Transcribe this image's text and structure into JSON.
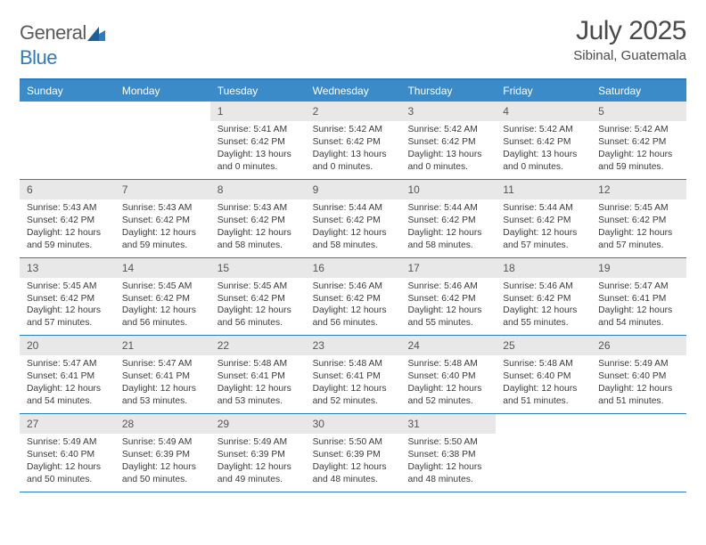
{
  "brand": {
    "part1": "General",
    "part2": "Blue"
  },
  "title": "July 2025",
  "location": "Sibinal, Guatemala",
  "colors": {
    "header_bar": "#3b8bc9",
    "border": "#2f7bbf",
    "daynum_bg": "#e8e8e8",
    "text": "#333333",
    "muted": "#555555",
    "page_bg": "#ffffff"
  },
  "typography": {
    "title_fontsize": 30,
    "location_fontsize": 15,
    "dow_fontsize": 12,
    "cell_fontsize": 10.3,
    "daynum_fontsize": 12
  },
  "layout": {
    "columns": 7,
    "rows": 5,
    "cell_min_height": 84
  },
  "daysOfWeek": [
    "Sunday",
    "Monday",
    "Tuesday",
    "Wednesday",
    "Thursday",
    "Friday",
    "Saturday"
  ],
  "weeks": [
    [
      null,
      null,
      {
        "n": "1",
        "sr": "5:41 AM",
        "ss": "6:42 PM",
        "dl": "13 hours and 0 minutes."
      },
      {
        "n": "2",
        "sr": "5:42 AM",
        "ss": "6:42 PM",
        "dl": "13 hours and 0 minutes."
      },
      {
        "n": "3",
        "sr": "5:42 AM",
        "ss": "6:42 PM",
        "dl": "13 hours and 0 minutes."
      },
      {
        "n": "4",
        "sr": "5:42 AM",
        "ss": "6:42 PM",
        "dl": "13 hours and 0 minutes."
      },
      {
        "n": "5",
        "sr": "5:42 AM",
        "ss": "6:42 PM",
        "dl": "12 hours and 59 minutes."
      }
    ],
    [
      {
        "n": "6",
        "sr": "5:43 AM",
        "ss": "6:42 PM",
        "dl": "12 hours and 59 minutes."
      },
      {
        "n": "7",
        "sr": "5:43 AM",
        "ss": "6:42 PM",
        "dl": "12 hours and 59 minutes."
      },
      {
        "n": "8",
        "sr": "5:43 AM",
        "ss": "6:42 PM",
        "dl": "12 hours and 58 minutes."
      },
      {
        "n": "9",
        "sr": "5:44 AM",
        "ss": "6:42 PM",
        "dl": "12 hours and 58 minutes."
      },
      {
        "n": "10",
        "sr": "5:44 AM",
        "ss": "6:42 PM",
        "dl": "12 hours and 58 minutes."
      },
      {
        "n": "11",
        "sr": "5:44 AM",
        "ss": "6:42 PM",
        "dl": "12 hours and 57 minutes."
      },
      {
        "n": "12",
        "sr": "5:45 AM",
        "ss": "6:42 PM",
        "dl": "12 hours and 57 minutes."
      }
    ],
    [
      {
        "n": "13",
        "sr": "5:45 AM",
        "ss": "6:42 PM",
        "dl": "12 hours and 57 minutes."
      },
      {
        "n": "14",
        "sr": "5:45 AM",
        "ss": "6:42 PM",
        "dl": "12 hours and 56 minutes."
      },
      {
        "n": "15",
        "sr": "5:45 AM",
        "ss": "6:42 PM",
        "dl": "12 hours and 56 minutes."
      },
      {
        "n": "16",
        "sr": "5:46 AM",
        "ss": "6:42 PM",
        "dl": "12 hours and 56 minutes."
      },
      {
        "n": "17",
        "sr": "5:46 AM",
        "ss": "6:42 PM",
        "dl": "12 hours and 55 minutes."
      },
      {
        "n": "18",
        "sr": "5:46 AM",
        "ss": "6:42 PM",
        "dl": "12 hours and 55 minutes."
      },
      {
        "n": "19",
        "sr": "5:47 AM",
        "ss": "6:41 PM",
        "dl": "12 hours and 54 minutes."
      }
    ],
    [
      {
        "n": "20",
        "sr": "5:47 AM",
        "ss": "6:41 PM",
        "dl": "12 hours and 54 minutes."
      },
      {
        "n": "21",
        "sr": "5:47 AM",
        "ss": "6:41 PM",
        "dl": "12 hours and 53 minutes."
      },
      {
        "n": "22",
        "sr": "5:48 AM",
        "ss": "6:41 PM",
        "dl": "12 hours and 53 minutes."
      },
      {
        "n": "23",
        "sr": "5:48 AM",
        "ss": "6:41 PM",
        "dl": "12 hours and 52 minutes."
      },
      {
        "n": "24",
        "sr": "5:48 AM",
        "ss": "6:40 PM",
        "dl": "12 hours and 52 minutes."
      },
      {
        "n": "25",
        "sr": "5:48 AM",
        "ss": "6:40 PM",
        "dl": "12 hours and 51 minutes."
      },
      {
        "n": "26",
        "sr": "5:49 AM",
        "ss": "6:40 PM",
        "dl": "12 hours and 51 minutes."
      }
    ],
    [
      {
        "n": "27",
        "sr": "5:49 AM",
        "ss": "6:40 PM",
        "dl": "12 hours and 50 minutes."
      },
      {
        "n": "28",
        "sr": "5:49 AM",
        "ss": "6:39 PM",
        "dl": "12 hours and 50 minutes."
      },
      {
        "n": "29",
        "sr": "5:49 AM",
        "ss": "6:39 PM",
        "dl": "12 hours and 49 minutes."
      },
      {
        "n": "30",
        "sr": "5:50 AM",
        "ss": "6:39 PM",
        "dl": "12 hours and 48 minutes."
      },
      {
        "n": "31",
        "sr": "5:50 AM",
        "ss": "6:38 PM",
        "dl": "12 hours and 48 minutes."
      },
      null,
      null
    ]
  ],
  "labels": {
    "sunrise": "Sunrise:",
    "sunset": "Sunset:",
    "daylight": "Daylight:"
  }
}
